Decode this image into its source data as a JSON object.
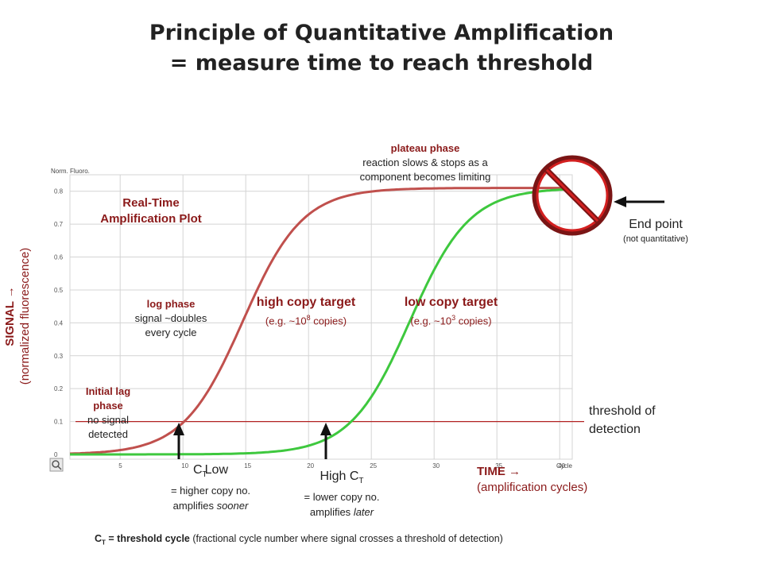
{
  "title_line1": "Principle of Quantitative Amplification",
  "title_line2": "= measure time to reach threshold",
  "plot": {
    "y_label": "Norm. Fluoro.",
    "x_label": "Cycle",
    "y_ticks": [
      "0",
      "0.1",
      "0.2",
      "0.3",
      "0.4",
      "0.5",
      "0.6",
      "0.7",
      "0.8"
    ],
    "x_ticks": [
      "5",
      "10",
      "15",
      "20",
      "25",
      "30",
      "35",
      "40"
    ],
    "threshold": 0.1,
    "curves": [
      {
        "name": "high copy target",
        "color": "#c0504d",
        "ct": 10.1
      },
      {
        "name": "low copy target",
        "color": "#3ec83e",
        "ct": 23.4
      }
    ]
  },
  "labels": {
    "plot_title_line1": "Real-Time",
    "plot_title_line2": "Amplification Plot",
    "plateau_title": "plateau phase",
    "plateau_desc1": "reaction slows & stops as a",
    "plateau_desc2": "component becomes limiting",
    "log_title": "log phase",
    "log_desc1": "signal ~doubles",
    "log_desc2": "every cycle",
    "lag_title1": "Initial lag",
    "lag_title2": "phase",
    "lag_desc1": "no signal",
    "lag_desc2": "detected",
    "high_target": "high copy target",
    "high_copies_pre": "(e.g. ~10",
    "high_copies_exp": "8",
    "high_copies_post": " copies)",
    "low_target": "low copy target",
    "low_copies_pre": "(e.g. ~10",
    "low_copies_exp": "3",
    "low_copies_post": " copies)",
    "end_point": "End point",
    "end_point_note": "(not quantitative)",
    "threshold1": "threshold of",
    "threshold2": "detection",
    "signal_axis1": "SIGNAL →",
    "signal_axis2": "(normalized fluorescence)",
    "time_axis1": "TIME →",
    "time_axis2": "(amplification cycles)",
    "ct_low_pre": "C",
    "ct_low_sub": "T",
    "ct_low_word": "Low",
    "ct_low_desc1": "= higher copy no.",
    "ct_low_desc2_pre": "amplifies ",
    "ct_low_desc2_em": "sooner",
    "ct_high_pre": "High C",
    "ct_high_sub": "T",
    "ct_high_desc1": "= lower copy no.",
    "ct_high_desc2_pre": "amplifies ",
    "ct_high_desc2_em": "later",
    "footer_c": "C",
    "footer_sub": "T",
    "footer_bold": " = threshold cycle",
    "footer_rest": " (fractional cycle number where signal crosses a threshold of detection)"
  },
  "colors": {
    "label_red": "#8b1a1a",
    "threshold_line": "#b22222",
    "high_curve": "#c0504d",
    "low_curve": "#3ec83e",
    "grid": "#d4d4d4"
  }
}
